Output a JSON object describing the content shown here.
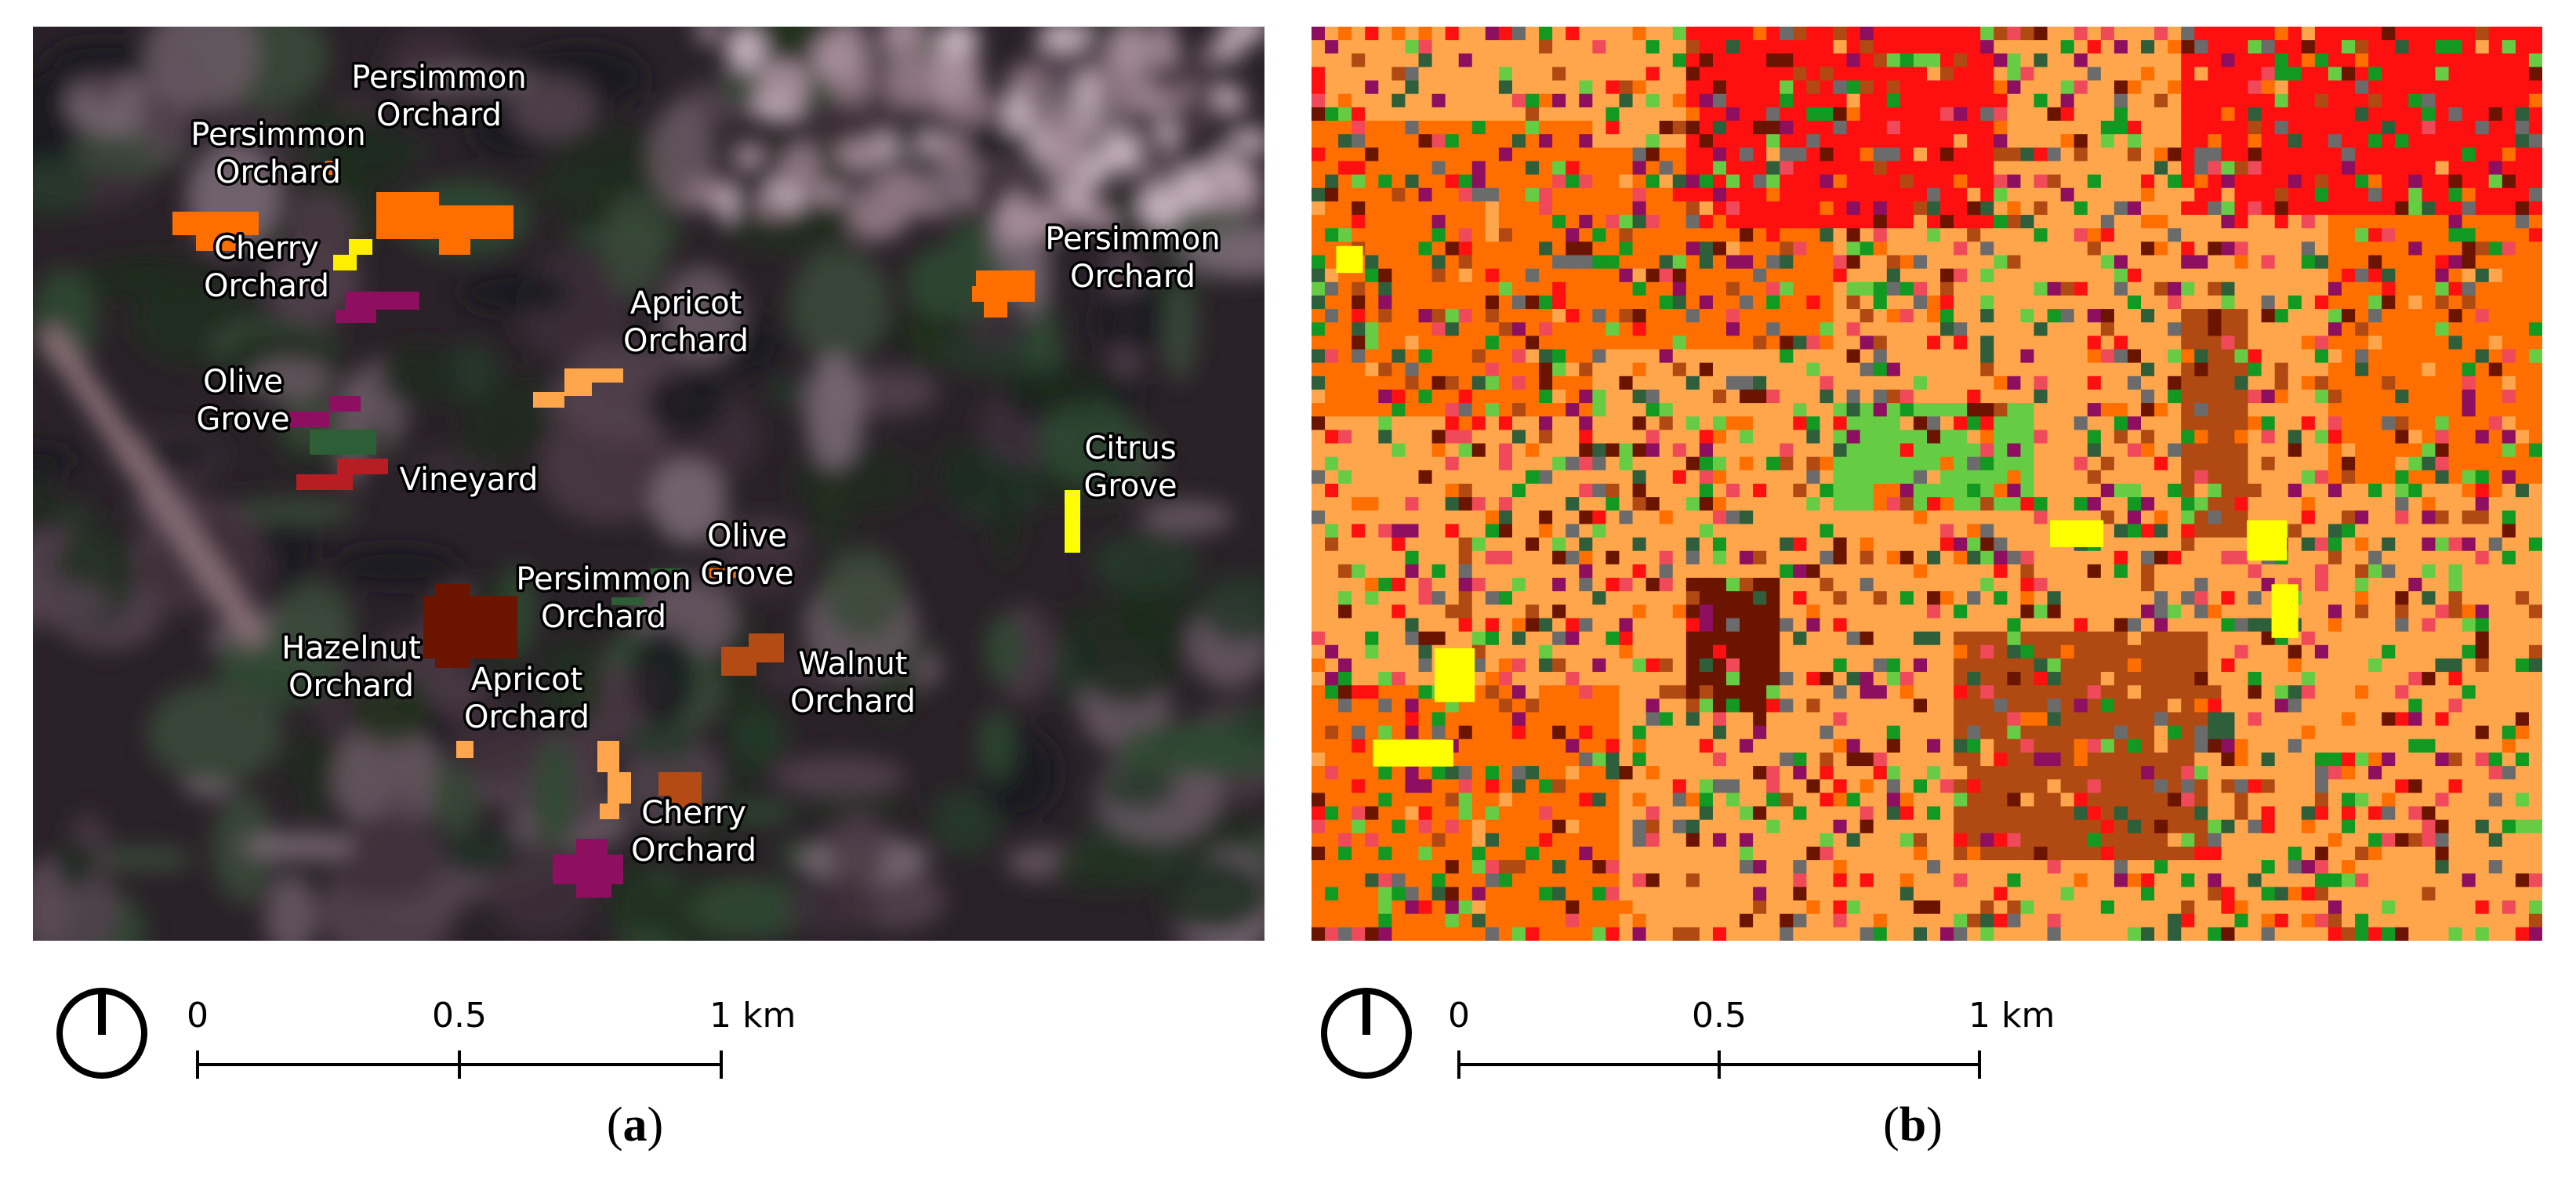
{
  "colors": {
    "persimmon_orchard": "#ff6f00",
    "cherry_orchard": "#ffee00",
    "apricot_orchard": "#ffa64d",
    "olive_grove": "#8e0e5f",
    "olive_grove_dark": "#2d5e35",
    "vineyard": "#b81d24",
    "citrus_grove": "#ffff00",
    "hazelnut_orchard": "#6b1400",
    "walnut_orchard": "#b44a14",
    "red_class": "#ff1010",
    "light_green_class": "#66cc44",
    "green_class": "#119922",
    "dark_green_class": "#2e5e3a",
    "brown_class": "#b04a12",
    "pink_class": "#f04a5a",
    "gray_class": "#6b6b6b",
    "satellite_base": "#2a2228"
  },
  "panel_a": {
    "caption_letter": "a",
    "labels": [
      {
        "id": "persimmon-1",
        "lines": [
          "Persimmon",
          "Orchard"
        ]
      },
      {
        "id": "persimmon-2",
        "lines": [
          "Persimmon",
          "Orchard"
        ]
      },
      {
        "id": "cherry-1",
        "lines": [
          "Cherry",
          "Orchard"
        ]
      },
      {
        "id": "persimmon-3",
        "lines": [
          "Persimmon",
          "Orchard"
        ]
      },
      {
        "id": "apricot-1",
        "lines": [
          "Apricot",
          "Orchard"
        ]
      },
      {
        "id": "olive-1",
        "lines": [
          "Olive",
          "Grove"
        ]
      },
      {
        "id": "vineyard-1",
        "lines": [
          "Vineyard"
        ]
      },
      {
        "id": "citrus-1",
        "lines": [
          "Citrus",
          "Grove"
        ]
      },
      {
        "id": "olive-2",
        "lines": [
          "Olive",
          "Grove"
        ]
      },
      {
        "id": "persimmon-4",
        "lines": [
          "Persimmon",
          "Orchard"
        ]
      },
      {
        "id": "hazelnut-1",
        "lines": [
          "Hazelnut",
          "Orchard"
        ]
      },
      {
        "id": "walnut-1",
        "lines": [
          "Walnut",
          "Orchard"
        ]
      },
      {
        "id": "apricot-2",
        "lines": [
          "Apricot",
          "Orchard"
        ]
      },
      {
        "id": "cherry-2",
        "lines": [
          "Cherry",
          "Orchard"
        ]
      }
    ],
    "scale": {
      "ticks": [
        "0",
        "0.5",
        "1 km"
      ]
    }
  },
  "panel_b": {
    "caption_letter": "b",
    "scale": {
      "ticks": [
        "0",
        "0.5",
        "1 km"
      ]
    }
  }
}
